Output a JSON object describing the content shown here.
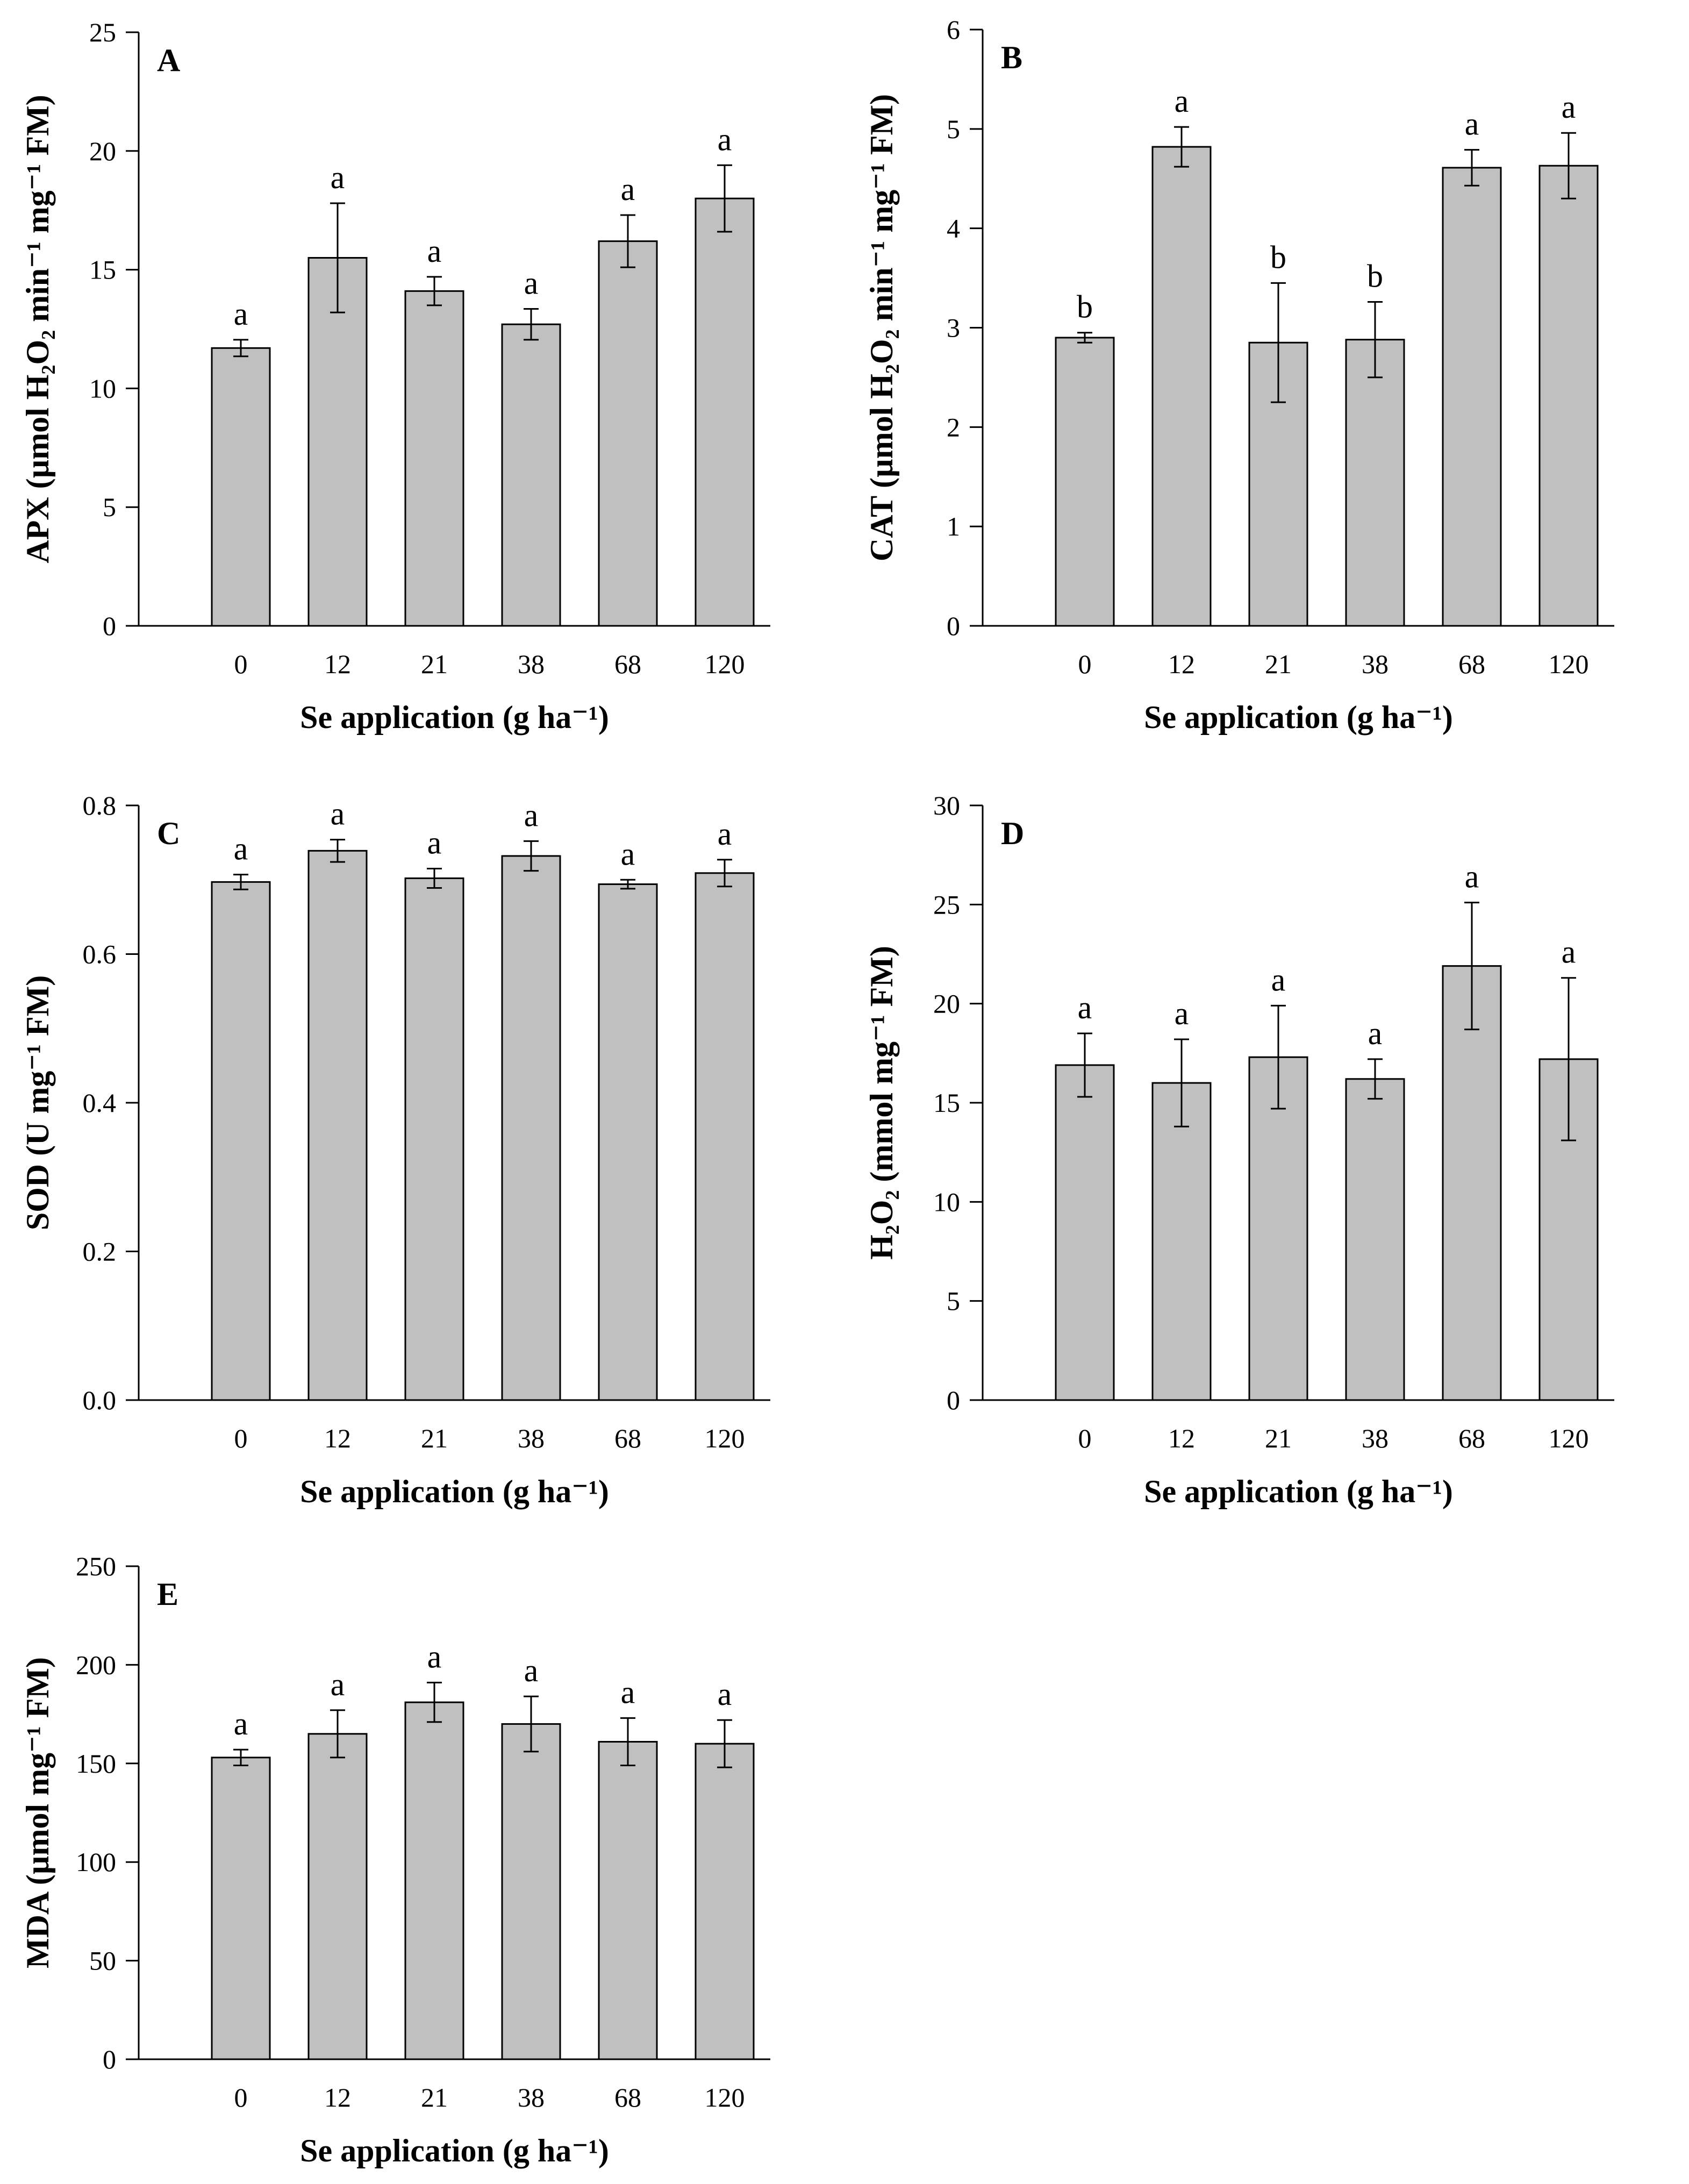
{
  "chart_data": [
    {
      "panel": "A",
      "type": "bar",
      "categories": [
        "0",
        "12",
        "21",
        "38",
        "68",
        "120"
      ],
      "values": [
        11.7,
        15.5,
        14.1,
        12.7,
        16.2,
        18.0
      ],
      "errors": [
        0.35,
        2.3,
        0.6,
        0.65,
        1.1,
        1.4
      ],
      "significance": [
        "a",
        "a",
        "a",
        "a",
        "a",
        "a"
      ],
      "ylim": [
        0,
        25
      ],
      "yticks": [
        "0",
        "5",
        "10",
        "15",
        "20",
        "25"
      ],
      "xlabel": "Se application (g ha⁻¹)",
      "ylabel": "APX (µmol H₂O₂ min⁻¹ mg⁻¹ FM)"
    },
    {
      "panel": "B",
      "type": "bar",
      "categories": [
        "0",
        "12",
        "21",
        "38",
        "68",
        "120"
      ],
      "values": [
        2.9,
        4.82,
        2.85,
        2.88,
        4.61,
        4.63
      ],
      "errors": [
        0.05,
        0.2,
        0.6,
        0.38,
        0.18,
        0.33
      ],
      "significance": [
        "b",
        "a",
        "b",
        "b",
        "a",
        "a"
      ],
      "ylim": [
        0,
        6
      ],
      "yticks": [
        "0",
        "1",
        "2",
        "3",
        "4",
        "5",
        "6"
      ],
      "xlabel": "Se application (g ha⁻¹)",
      "ylabel": "CAT (µmol H₂O₂ min⁻¹ mg⁻¹ FM)"
    },
    {
      "panel": "C",
      "type": "bar",
      "categories": [
        "0",
        "12",
        "21",
        "38",
        "68",
        "120"
      ],
      "values": [
        0.697,
        0.739,
        0.702,
        0.732,
        0.694,
        0.709
      ],
      "errors": [
        0.01,
        0.015,
        0.013,
        0.02,
        0.006,
        0.018
      ],
      "significance": [
        "a",
        "a",
        "a",
        "a",
        "a",
        "a"
      ],
      "ylim": [
        0,
        0.8
      ],
      "yticks": [
        "0.0",
        "0.2",
        "0.4",
        "0.6",
        "0.8"
      ],
      "xlabel": "Se application (g ha⁻¹)",
      "ylabel": "SOD (U mg⁻¹ FM)"
    },
    {
      "panel": "D",
      "type": "bar",
      "categories": [
        "0",
        "12",
        "21",
        "38",
        "68",
        "120"
      ],
      "values": [
        16.9,
        16.0,
        17.3,
        16.2,
        21.9,
        17.2
      ],
      "errors": [
        1.6,
        2.2,
        2.6,
        1.0,
        3.2,
        4.1
      ],
      "significance": [
        "a",
        "a",
        "a",
        "a",
        "a",
        "a"
      ],
      "ylim": [
        0,
        30
      ],
      "yticks": [
        "0",
        "5",
        "10",
        "15",
        "20",
        "25",
        "30"
      ],
      "xlabel": "Se application (g ha⁻¹)",
      "ylabel": "H₂O₂ (mmol mg⁻¹ FM)"
    },
    {
      "panel": "E",
      "type": "bar",
      "categories": [
        "0",
        "12",
        "21",
        "38",
        "68",
        "120"
      ],
      "values": [
        153,
        165,
        181,
        170,
        161,
        160
      ],
      "errors": [
        4,
        12,
        10,
        14,
        12,
        12
      ],
      "significance": [
        "a",
        "a",
        "a",
        "a",
        "a",
        "a"
      ],
      "ylim": [
        0,
        250
      ],
      "yticks": [
        "0",
        "50",
        "100",
        "150",
        "200",
        "250"
      ],
      "xlabel": "Se application (g ha⁻¹)",
      "ylabel": "MDA (µmol mg⁻¹ FM)"
    }
  ]
}
